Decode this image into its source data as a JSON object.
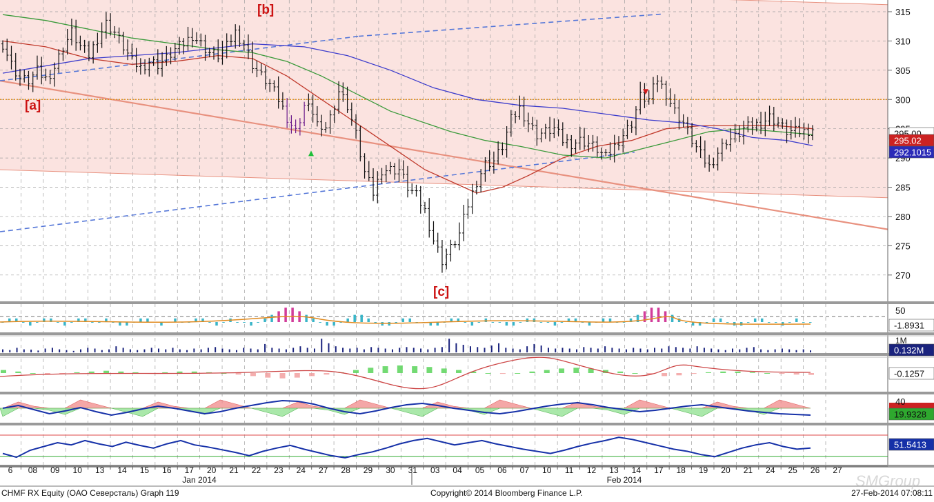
{
  "footer": {
    "left": "CHMF RX Equity (ОАО Северсталь) Graph 119",
    "center": "Copyright© 2014 Bloomberg Finance L.P.",
    "right": "27-Feb-2014 07:08:11",
    "watermark": "SMGroup"
  },
  "wave_labels": [
    "[a]",
    "[b]",
    "[c]"
  ],
  "month_labels": [
    "Jan 2014",
    "Feb 2014"
  ],
  "colors": {
    "price_bar": "#111111",
    "ma_red": "#c0392b",
    "ma_green": "#3a9a3a",
    "ma_blue": "#3c3ccc",
    "channel_fill": "#f9d9d6",
    "channel_line": "#e8917f",
    "dashed_trend": "#5577d8",
    "level_line": "#e09020",
    "annotation_red": "#cc1111",
    "volume_bar": "#1a237e",
    "osc_cyan": "#39b5c8",
    "osc_magenta": "#d23c9a",
    "panel_separator": "#9a9a9a"
  },
  "chart_data": [
    {
      "type": "bar",
      "panel": "price",
      "series_name": "CHMF RX Equity",
      "x_ticks": [
        "6",
        "08",
        "09",
        "10",
        "13",
        "14",
        "15",
        "16",
        "17",
        "20",
        "21",
        "22",
        "23",
        "24",
        "27",
        "28",
        "29",
        "30",
        "31",
        "03",
        "04",
        "05",
        "06",
        "07",
        "10",
        "11",
        "12",
        "13",
        "14",
        "17",
        "18",
        "19",
        "20",
        "21",
        "24",
        "25",
        "26",
        "27"
      ],
      "ylim": [
        265.5,
        317
      ],
      "y_ticks": [
        270,
        275,
        280,
        285,
        290,
        295,
        300,
        305,
        310,
        315
      ],
      "grid": true,
      "price_labels": [
        "295.00",
        "295.02",
        "292.1015"
      ],
      "horizontal_level": 300,
      "close_series": [
        {
          "i": 0,
          "v": 309.5
        },
        {
          "i": 2,
          "v": 306
        },
        {
          "i": 4,
          "v": 303.5
        },
        {
          "i": 6,
          "v": 303.2
        },
        {
          "i": 8,
          "v": 304.8
        },
        {
          "i": 10,
          "v": 303.5
        },
        {
          "i": 12,
          "v": 305.5
        },
        {
          "i": 14,
          "v": 309
        },
        {
          "i": 16,
          "v": 311.5
        },
        {
          "i": 18,
          "v": 309
        },
        {
          "i": 20,
          "v": 307.5
        },
        {
          "i": 22,
          "v": 310.5
        },
        {
          "i": 24,
          "v": 313
        },
        {
          "i": 26,
          "v": 311.5
        },
        {
          "i": 28,
          "v": 309
        },
        {
          "i": 30,
          "v": 306.5
        },
        {
          "i": 32,
          "v": 305.5
        },
        {
          "i": 34,
          "v": 306.5
        },
        {
          "i": 36,
          "v": 306
        },
        {
          "i": 38,
          "v": 307
        },
        {
          "i": 40,
          "v": 308.5
        },
        {
          "i": 42,
          "v": 309.5
        },
        {
          "i": 44,
          "v": 311
        },
        {
          "i": 46,
          "v": 309.5
        },
        {
          "i": 48,
          "v": 308
        },
        {
          "i": 50,
          "v": 307.5
        },
        {
          "i": 52,
          "v": 309
        },
        {
          "i": 54,
          "v": 311.5
        },
        {
          "i": 56,
          "v": 309.5
        },
        {
          "i": 58,
          "v": 306
        },
        {
          "i": 60,
          "v": 304
        },
        {
          "i": 62,
          "v": 302.5
        },
        {
          "i": 64,
          "v": 300
        },
        {
          "i": 66,
          "v": 297
        },
        {
          "i": 68,
          "v": 294.5
        },
        {
          "i": 70,
          "v": 299
        },
        {
          "i": 72,
          "v": 298
        },
        {
          "i": 74,
          "v": 294
        },
        {
          "i": 76,
          "v": 297
        },
        {
          "i": 78,
          "v": 301.5
        },
        {
          "i": 80,
          "v": 299
        },
        {
          "i": 82,
          "v": 294
        },
        {
          "i": 84,
          "v": 287.5
        },
        {
          "i": 86,
          "v": 284
        },
        {
          "i": 88,
          "v": 288
        },
        {
          "i": 90,
          "v": 288
        },
        {
          "i": 92,
          "v": 288
        },
        {
          "i": 94,
          "v": 285
        },
        {
          "i": 96,
          "v": 283.5
        },
        {
          "i": 98,
          "v": 281
        },
        {
          "i": 100,
          "v": 276
        },
        {
          "i": 102,
          "v": 272.5
        },
        {
          "i": 104,
          "v": 274.5
        },
        {
          "i": 106,
          "v": 277
        },
        {
          "i": 108,
          "v": 282
        },
        {
          "i": 110,
          "v": 286
        },
        {
          "i": 112,
          "v": 289
        },
        {
          "i": 114,
          "v": 289.5
        },
        {
          "i": 116,
          "v": 292
        },
        {
          "i": 118,
          "v": 296.5
        },
        {
          "i": 120,
          "v": 298.5
        },
        {
          "i": 122,
          "v": 296
        },
        {
          "i": 124,
          "v": 294
        },
        {
          "i": 126,
          "v": 294.5
        },
        {
          "i": 128,
          "v": 295
        },
        {
          "i": 130,
          "v": 293
        },
        {
          "i": 132,
          "v": 292.5
        },
        {
          "i": 134,
          "v": 293
        },
        {
          "i": 136,
          "v": 292.5
        },
        {
          "i": 138,
          "v": 291.5
        },
        {
          "i": 140,
          "v": 290
        },
        {
          "i": 142,
          "v": 292
        },
        {
          "i": 144,
          "v": 294
        },
        {
          "i": 146,
          "v": 296
        },
        {
          "i": 148,
          "v": 300.5
        },
        {
          "i": 150,
          "v": 300
        },
        {
          "i": 152,
          "v": 303.5
        },
        {
          "i": 154,
          "v": 301
        },
        {
          "i": 156,
          "v": 298
        },
        {
          "i": 158,
          "v": 296
        },
        {
          "i": 160,
          "v": 293
        },
        {
          "i": 162,
          "v": 290.5
        },
        {
          "i": 164,
          "v": 288.5
        },
        {
          "i": 166,
          "v": 291
        },
        {
          "i": 168,
          "v": 293
        },
        {
          "i": 170,
          "v": 293.5
        },
        {
          "i": 172,
          "v": 295
        },
        {
          "i": 174,
          "v": 295.5
        },
        {
          "i": 176,
          "v": 296
        },
        {
          "i": 178,
          "v": 297
        },
        {
          "i": 180,
          "v": 296
        },
        {
          "i": 182,
          "v": 294.5
        },
        {
          "i": 184,
          "v": 294.5
        },
        {
          "i": 186,
          "v": 294.5
        },
        {
          "i": 188,
          "v": 295
        }
      ],
      "moving_averages": [
        {
          "key": "ma_red",
          "points": [
            [
              0,
              310
            ],
            [
              10,
              309
            ],
            [
              20,
              307
            ],
            [
              30,
              306
            ],
            [
              40,
              306.5
            ],
            [
              50,
              307.5
            ],
            [
              58,
              307
            ],
            [
              66,
              304
            ],
            [
              74,
              300
            ],
            [
              82,
              296
            ],
            [
              90,
              292
            ],
            [
              98,
              288
            ],
            [
              104,
              286
            ],
            [
              110,
              284
            ],
            [
              116,
              285
            ],
            [
              122,
              287
            ],
            [
              130,
              290
            ],
            [
              138,
              292
            ],
            [
              146,
              293
            ],
            [
              154,
              295
            ],
            [
              162,
              295.5
            ],
            [
              172,
              295.5
            ],
            [
              180,
              295.5
            ],
            [
              188,
              295
            ]
          ]
        },
        {
          "key": "ma_green",
          "points": [
            [
              0,
              314.5
            ],
            [
              10,
              313.5
            ],
            [
              20,
              312
            ],
            [
              30,
              310.5
            ],
            [
              40,
              309.5
            ],
            [
              50,
              308.5
            ],
            [
              58,
              308
            ],
            [
              66,
              306.5
            ],
            [
              74,
              304
            ],
            [
              82,
              301
            ],
            [
              90,
              298
            ],
            [
              98,
              296
            ],
            [
              104,
              294.5
            ],
            [
              112,
              293
            ],
            [
              120,
              292
            ],
            [
              130,
              290.5
            ],
            [
              140,
              290
            ],
            [
              148,
              291.5
            ],
            [
              156,
              293
            ],
            [
              164,
              294.5
            ],
            [
              172,
              295
            ],
            [
              180,
              294.5
            ],
            [
              188,
              294
            ]
          ]
        },
        {
          "key": "ma_blue",
          "points": [
            [
              0,
              304.5
            ],
            [
              20,
              307
            ],
            [
              40,
              308
            ],
            [
              58,
              309.5
            ],
            [
              70,
              309
            ],
            [
              80,
              307.5
            ],
            [
              90,
              305
            ],
            [
              100,
              302
            ],
            [
              110,
              300
            ],
            [
              120,
              299
            ],
            [
              130,
              298.5
            ],
            [
              140,
              297.5
            ],
            [
              150,
              296.5
            ],
            [
              158,
              296
            ],
            [
              166,
              295
            ],
            [
              174,
              293.5
            ],
            [
              182,
              293
            ],
            [
              188,
              292.1
            ]
          ]
        }
      ]
    },
    {
      "type": "bar",
      "panel": "oscillator-1",
      "y_ticks": [
        50
      ],
      "last_value_label": "-1.8931",
      "values": [
        0,
        1,
        1,
        0,
        -1,
        0,
        1,
        1,
        0,
        -1,
        0,
        1,
        1,
        0,
        0,
        1,
        0,
        -1,
        -1,
        0,
        1,
        1,
        0,
        -1,
        0,
        1,
        0,
        0,
        1,
        1,
        0,
        -1,
        0,
        1,
        0,
        0,
        -1,
        0,
        1,
        2,
        3,
        4,
        4,
        3,
        2,
        1,
        0,
        -1,
        -1,
        0,
        1,
        2,
        2,
        1,
        0,
        -1,
        -1,
        0,
        1,
        1,
        0,
        0,
        -1,
        -1,
        0,
        1,
        1,
        0,
        -1,
        0,
        1,
        0,
        0,
        -1,
        -1,
        0,
        1,
        1,
        0,
        0,
        -1,
        0,
        1,
        1,
        0,
        -1,
        0,
        1,
        1,
        0,
        0,
        1,
        2,
        3,
        4,
        4,
        3,
        2,
        1,
        0,
        -1,
        -1,
        0,
        1,
        1,
        0,
        -1,
        -1,
        0,
        1,
        1,
        0,
        0,
        -1,
        0,
        1,
        0,
        0
      ]
    },
    {
      "type": "bar",
      "panel": "volume",
      "y_ticks": [
        "1M"
      ],
      "last_value_label": "0.132M",
      "values": [
        0.2,
        0.15,
        0.3,
        0.2,
        0.18,
        0.12,
        0.25,
        0.3,
        0.2,
        0.15,
        0.1,
        0.2,
        0.3,
        0.25,
        0.15,
        0.2,
        0.4,
        0.3,
        0.2,
        0.15,
        0.2,
        0.3,
        0.25,
        0.2,
        0.3,
        0.2,
        0.15,
        0.25,
        0.2,
        0.3,
        0.35,
        0.25,
        0.2,
        0.15,
        0.3,
        0.25,
        0.2,
        0.55,
        0.3,
        0.25,
        0.2,
        0.3,
        0.4,
        0.3,
        0.25,
        0.9,
        0.6,
        0.4,
        0.3,
        0.25,
        0.3,
        0.2,
        0.35,
        0.3,
        0.25,
        0.2,
        0.3,
        0.35,
        0.3,
        0.25,
        0.2,
        0.3,
        0.35,
        0.9,
        0.6,
        0.5,
        0.4,
        0.35,
        0.3,
        0.45,
        0.6,
        0.3,
        0.25,
        0.2,
        0.4,
        0.55,
        0.45,
        0.3,
        0.25,
        0.3,
        0.25,
        0.2,
        0.35,
        0.3,
        0.25,
        0.4,
        0.3,
        0.25,
        0.2,
        0.3,
        0.25,
        0.2,
        0.3,
        0.25,
        0.4,
        0.35,
        0.3,
        0.25,
        0.4,
        0.3,
        0.25,
        0.2,
        0.15,
        0.25,
        0.2,
        0.3,
        0.35,
        0.2,
        0.15,
        0.2,
        0.25,
        0.2,
        0.15,
        0.2,
        0.13
      ]
    },
    {
      "type": "line",
      "panel": "macd",
      "last_value_label": "-0.1257",
      "values": [
        0.2,
        0.1,
        0.0,
        -0.1,
        -0.05,
        0.05,
        0.1,
        0.15,
        0.1,
        0.05,
        0.0,
        0.05,
        0.1,
        0.1,
        0.05,
        0.0,
        -0.1,
        -0.2,
        -0.3,
        -0.35,
        -0.3,
        -0.2,
        -0.1,
        0.05,
        0.2,
        0.35,
        0.45,
        0.5,
        0.45,
        0.4,
        0.3,
        0.2,
        0.1,
        0.0,
        -0.05,
        0.0,
        0.1,
        0.2,
        0.3,
        0.35,
        0.3,
        0.2,
        0.1,
        0.0,
        -0.1,
        -0.2,
        -0.15,
        -0.05,
        0.05,
        0.1,
        0.1,
        0.05,
        0.0,
        -0.05,
        -0.1,
        -0.12
      ]
    },
    {
      "type": "area",
      "panel": "oscillator-2",
      "y_ticks": [
        40
      ],
      "last_value_label": "19.9328",
      "values": [
        30,
        34,
        28,
        22,
        26,
        31,
        25,
        20,
        24,
        29,
        33,
        30,
        26,
        22,
        25,
        30,
        34,
        38,
        41,
        40,
        36,
        30,
        25,
        22,
        26,
        31,
        35,
        37,
        34,
        30,
        27,
        24,
        22,
        25,
        29,
        33,
        36,
        38,
        35,
        31,
        28,
        25,
        27,
        30,
        33,
        35,
        32,
        29,
        26,
        24,
        22,
        21,
        20
      ]
    },
    {
      "type": "line",
      "panel": "rsi",
      "last_value_label": "51.5413",
      "values": [
        42,
        35,
        48,
        55,
        62,
        58,
        66,
        60,
        55,
        63,
        57,
        52,
        60,
        66,
        58,
        54,
        49,
        44,
        38,
        46,
        52,
        57,
        50,
        44,
        38,
        34,
        40,
        45,
        52,
        60,
        66,
        70,
        64,
        58,
        62,
        66,
        60,
        55,
        50,
        46,
        42,
        48,
        55,
        61,
        66,
        72,
        68,
        62,
        56,
        50,
        46,
        40,
        36,
        44,
        52,
        58,
        62,
        55,
        50,
        52
      ]
    }
  ]
}
